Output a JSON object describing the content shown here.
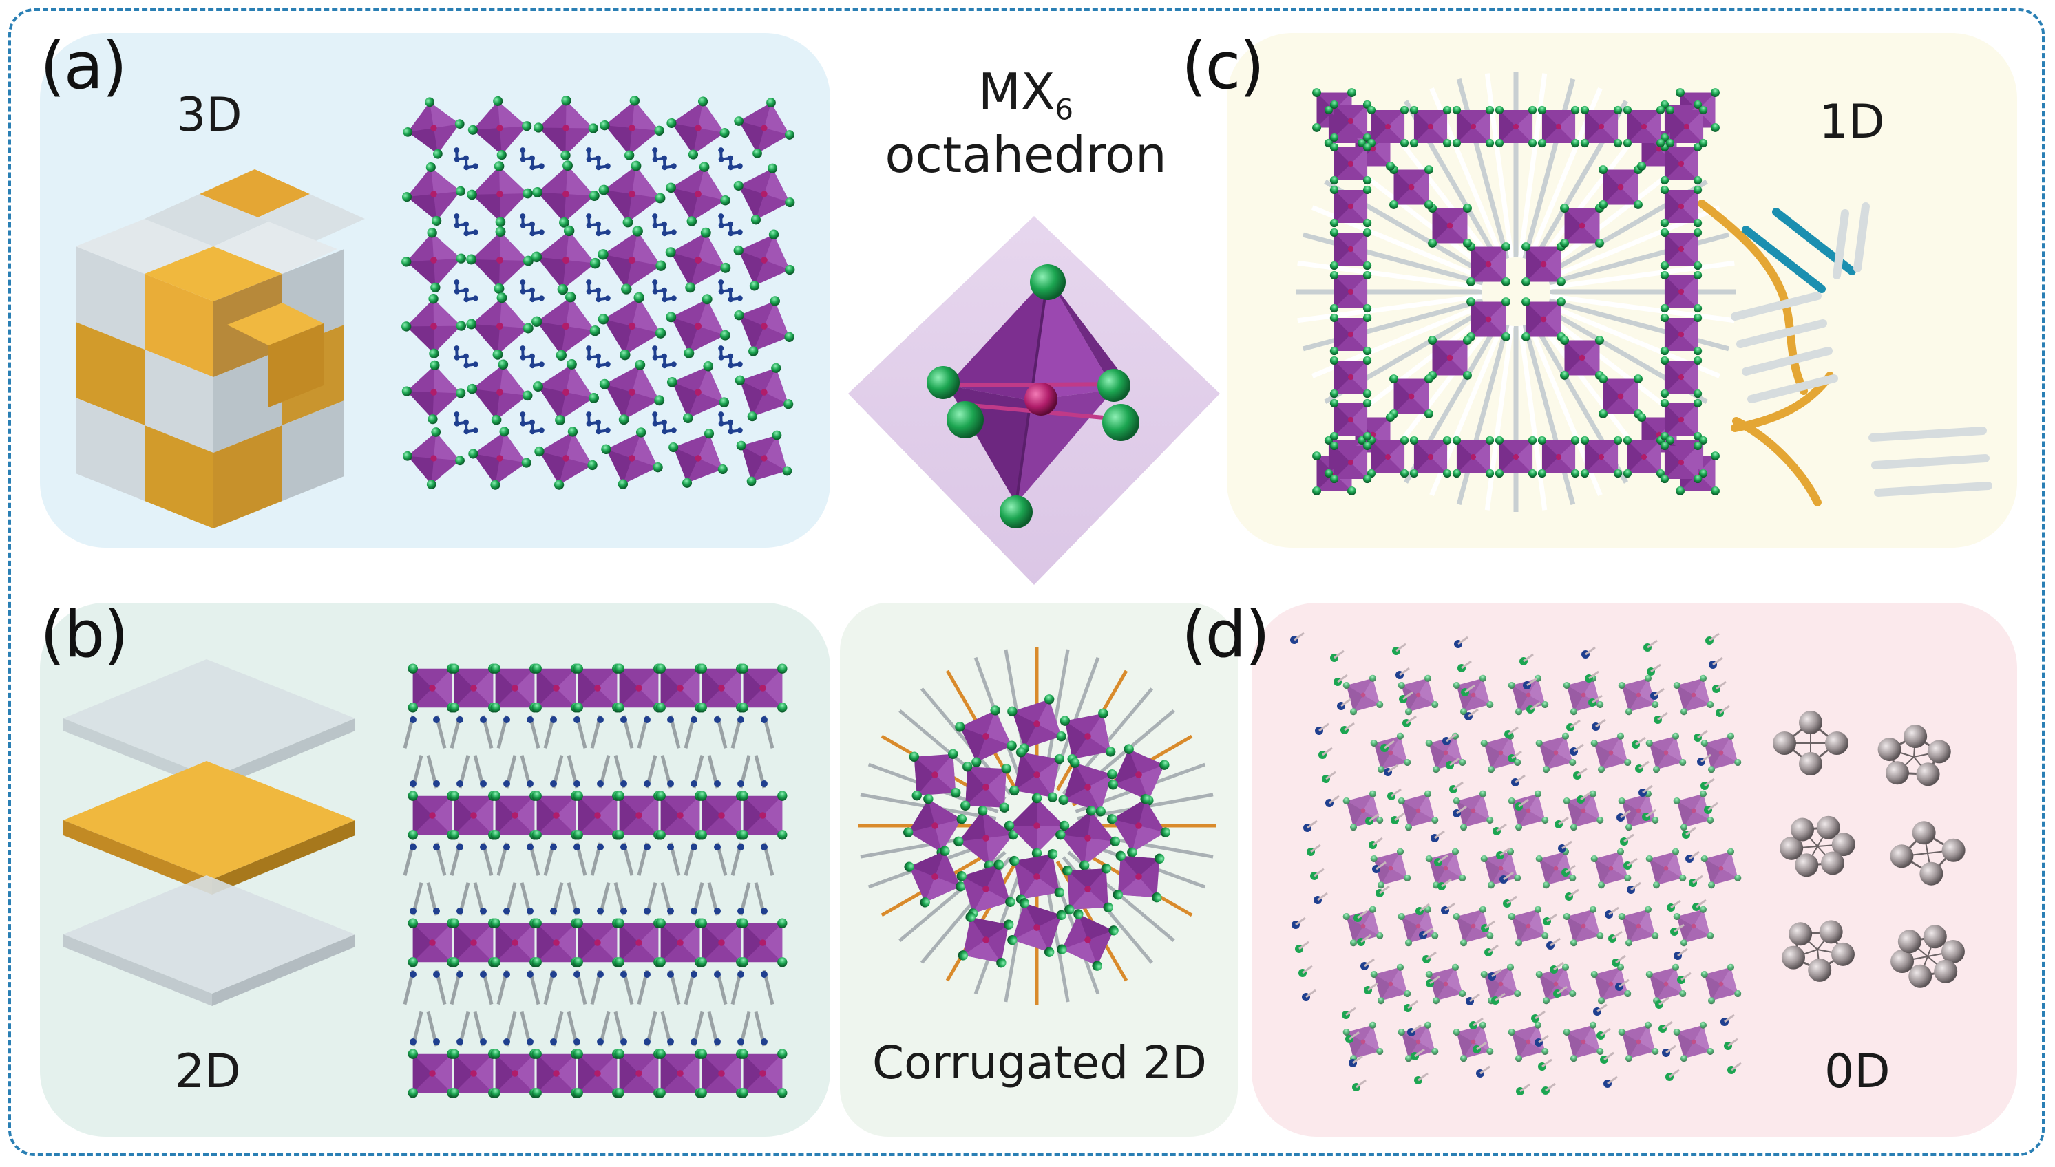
{
  "panels": {
    "a": {
      "label": "(a)",
      "dim": "3D"
    },
    "b": {
      "label": "(b)",
      "dim": "2D"
    },
    "c": {
      "label": "(c)",
      "dim": "1D"
    },
    "d": {
      "label": "(d)",
      "dim": "0D"
    }
  },
  "center": {
    "mx_main": "MX",
    "mx_sub": "6",
    "mx_caption": "octahedron",
    "corrugated": "Corrugated 2D"
  },
  "colors": {
    "octahedron": "#8e3ea0",
    "halide": "#1ca551",
    "metal": "#b01d6a",
    "organic": "#1f3f8f",
    "gold": "#d6a12a",
    "grey": "#c9d1d6",
    "teal": "#1b8fb0",
    "frame": "#2a7fb4"
  }
}
